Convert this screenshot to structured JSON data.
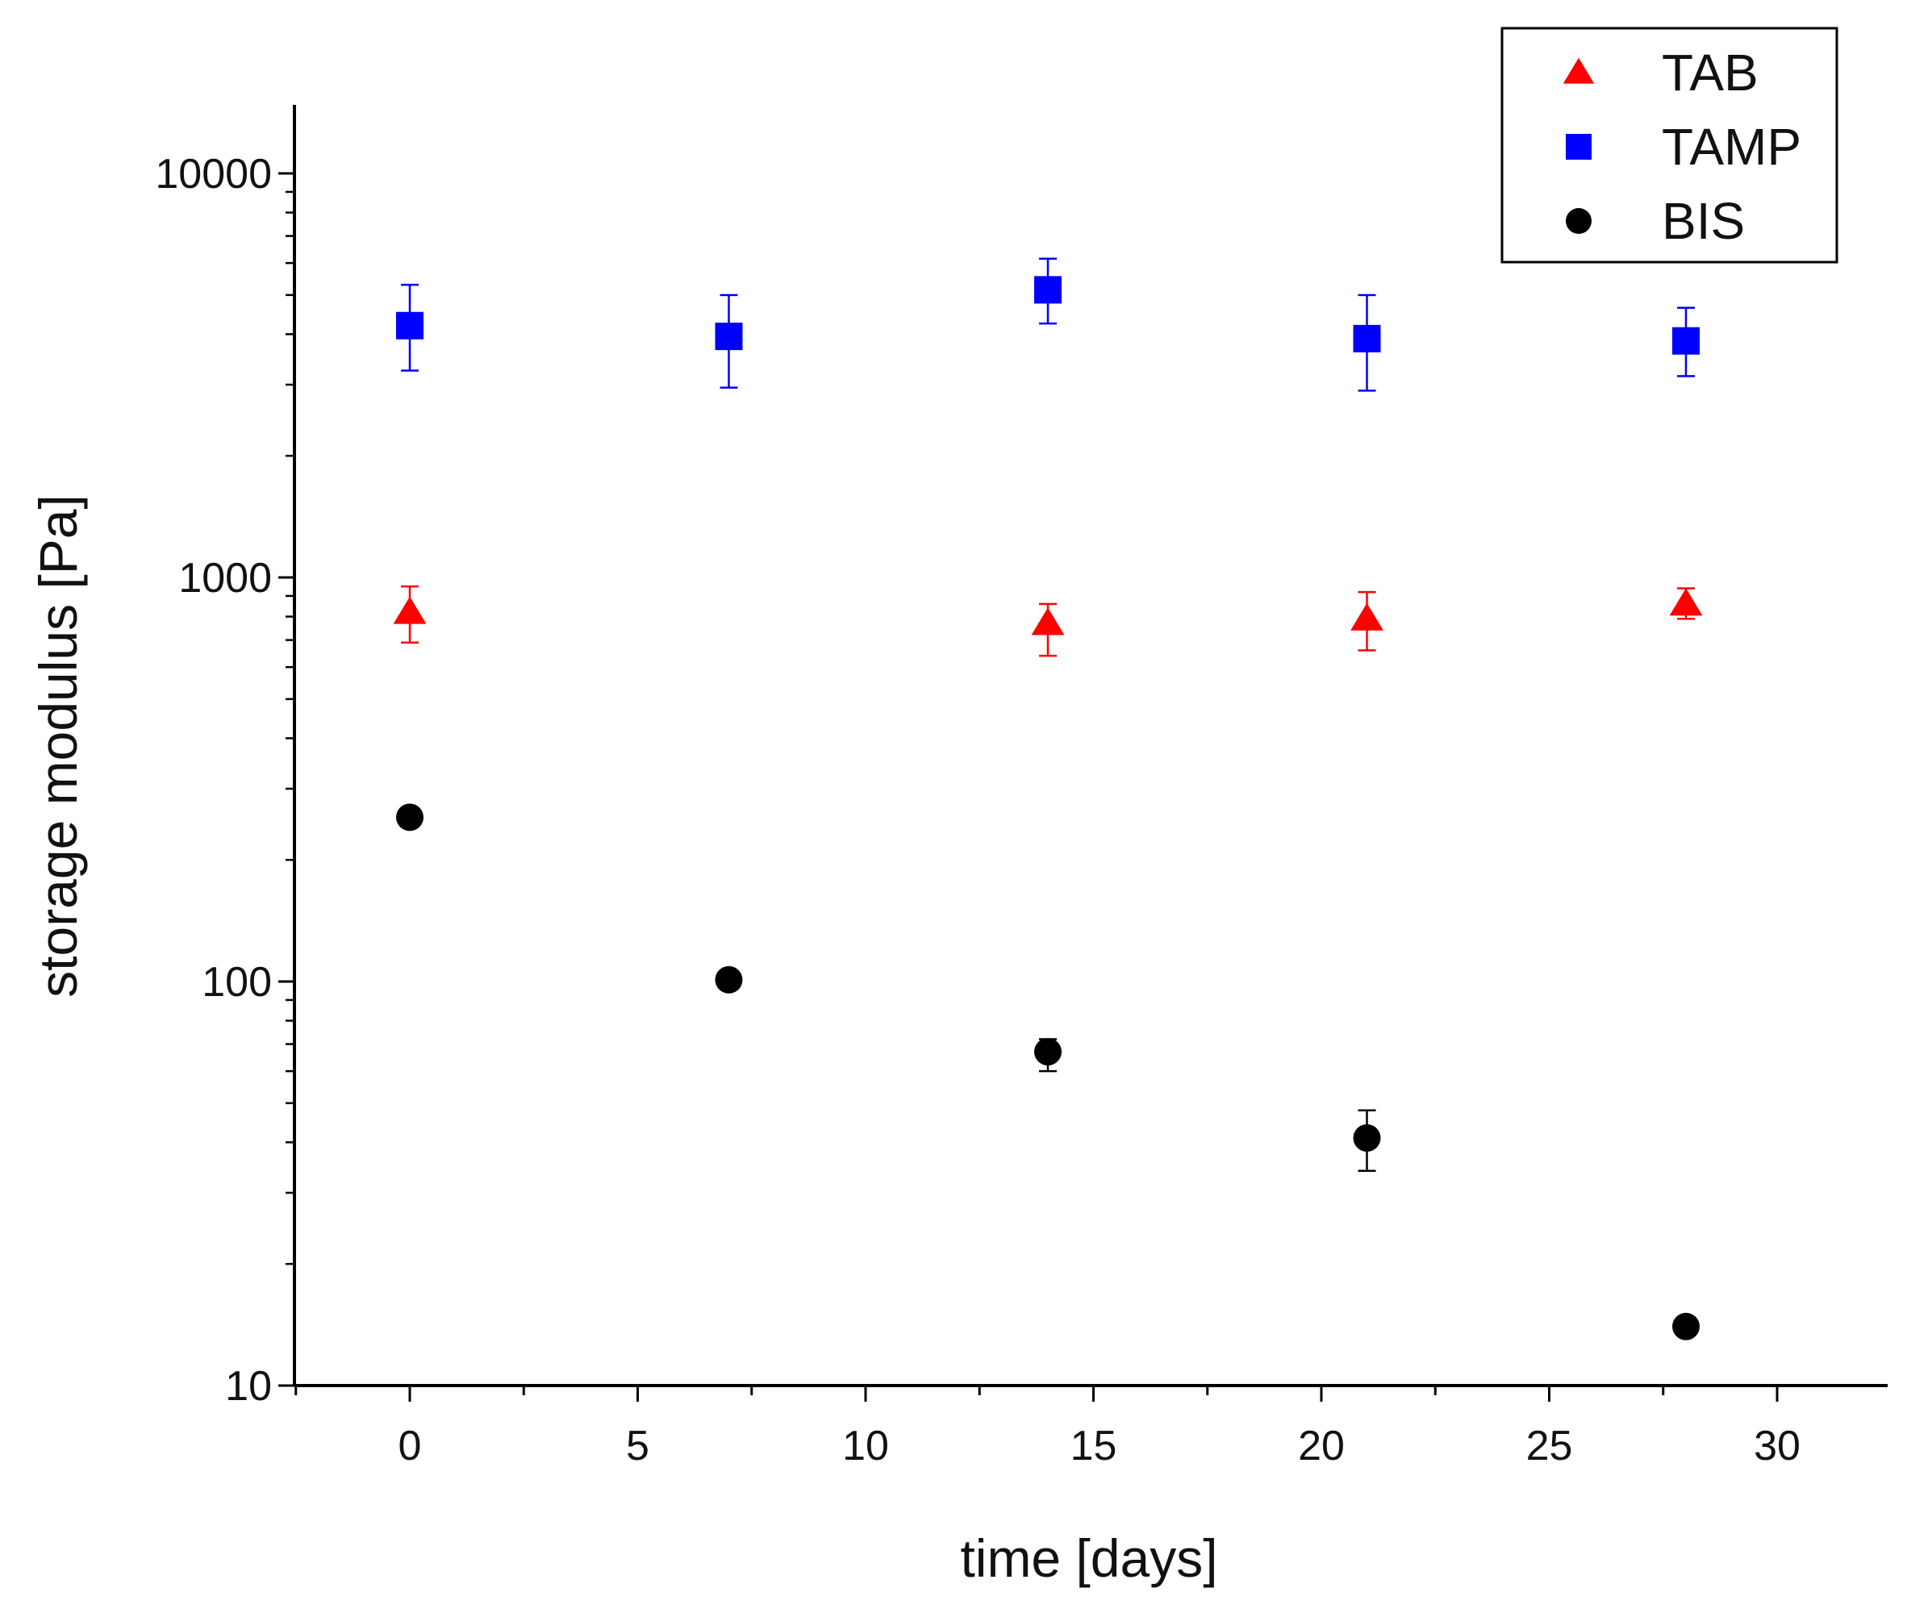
{
  "chart_data": {
    "type": "scatter",
    "title": "",
    "xlabel": "time [days]",
    "ylabel": "storage modulus [Pa]",
    "xlim": [
      -2.5,
      32.5
    ],
    "ylim": [
      10,
      15000
    ],
    "yscale": "log",
    "xticks": [
      0,
      5,
      10,
      15,
      20,
      25,
      30
    ],
    "xtick_labels": [
      "0",
      "5",
      "10",
      "15",
      "20",
      "25",
      "30"
    ],
    "yticks": [
      10,
      100,
      1000,
      10000
    ],
    "ytick_labels": [
      "10",
      "100",
      "1000",
      "10000"
    ],
    "grid": false,
    "legend_position": "top-right",
    "series": [
      {
        "name": "TAB",
        "marker": "triangle",
        "color": "#ff0000",
        "x": [
          0,
          14,
          21,
          28
        ],
        "y": [
          820,
          770,
          790,
          860
        ],
        "err_low": [
          690,
          640,
          660,
          790
        ],
        "err_high": [
          950,
          860,
          920,
          940
        ]
      },
      {
        "name": "TAMP",
        "marker": "square",
        "color": "#0000ff",
        "x": [
          0,
          7,
          14,
          21,
          28
        ],
        "y": [
          4200,
          3950,
          5150,
          3900,
          3850
        ],
        "err_low": [
          3250,
          2950,
          4250,
          2900,
          3150
        ],
        "err_high": [
          5300,
          5000,
          6150,
          5000,
          4650
        ]
      },
      {
        "name": "BIS",
        "marker": "circle",
        "color": "#000000",
        "x": [
          0,
          7,
          14,
          21,
          28
        ],
        "y": [
          255,
          101,
          67,
          41,
          14
        ],
        "err_low": [
          250,
          97,
          60,
          34,
          13.5
        ],
        "err_high": [
          262,
          105,
          72,
          48,
          14.5
        ]
      }
    ]
  }
}
